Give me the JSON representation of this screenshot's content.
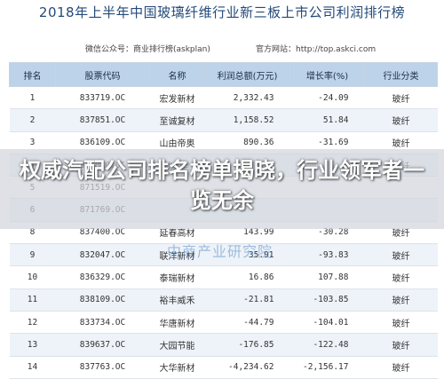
{
  "header": {
    "title": "2018年上半年中国玻璃纤维行业新三板上市公司利润排行榜",
    "wechat": "微信公众号：商业排行榜(askplan)",
    "website": "官方网站：http://top.askci.com"
  },
  "table": {
    "columns": [
      "排名",
      "股票代码",
      "名称",
      "利润总额(万元)",
      "增长率(%)",
      "行业分类"
    ],
    "rows": [
      {
        "rank": "1",
        "code": "833719.OC",
        "name": "宏发新材",
        "profit": "2,332.43",
        "growth": "-24.09",
        "category": "玻纤"
      },
      {
        "rank": "2",
        "code": "837851.OC",
        "name": "至诚复材",
        "profit": "1,158.52",
        "growth": "51.84",
        "category": "玻纤"
      },
      {
        "rank": "3",
        "code": "836109.OC",
        "name": "山由帝奥",
        "profit": "890.36",
        "growth": "-31.69",
        "category": "玻纤"
      },
      {
        "rank": "4",
        "code": "835810.OC",
        "name": "成如旦",
        "profit": "",
        "growth": "",
        "category": "玻纤"
      },
      {
        "rank": "5",
        "code": "871519.OC",
        "name": "",
        "profit": "",
        "growth": "",
        "category": ""
      },
      {
        "rank": "6",
        "code": "871769.OC",
        "name": "",
        "profit": "",
        "growth": "",
        "category": ""
      },
      {
        "rank": "8",
        "code": "837400.OC",
        "name": "延春高材",
        "profit": "143.99",
        "growth": "-30.28",
        "category": "玻纤"
      },
      {
        "rank": "9",
        "code": "832047.OC",
        "name": "联洋新材",
        "profit": "35.91",
        "growth": "-93.83",
        "category": "玻纤"
      },
      {
        "rank": "10",
        "code": "836329.OC",
        "name": "泰瑞新材",
        "profit": "16.86",
        "growth": "107.88",
        "category": "玻纤"
      },
      {
        "rank": "11",
        "code": "838109.OC",
        "name": "裕丰威禾",
        "profit": "-21.81",
        "growth": "-103.85",
        "category": "玻纤"
      },
      {
        "rank": "12",
        "code": "833734.OC",
        "name": "华唐新材",
        "profit": "-44.79",
        "growth": "-104.01",
        "category": "玻纤"
      },
      {
        "rank": "13",
        "code": "839637.OC",
        "name": "大园节能",
        "profit": "-176.85",
        "growth": "-122.48",
        "category": "玻纤"
      },
      {
        "rank": "14",
        "code": "837763.OC",
        "name": "大华新材",
        "profit": "-4,234.62",
        "growth": "-2,156.17",
        "category": "玻纤"
      }
    ]
  },
  "overlay": {
    "text": "权威汽配公司排名榜单揭晓，行业领军者一览无余"
  },
  "watermark": "中商产业研究院"
}
